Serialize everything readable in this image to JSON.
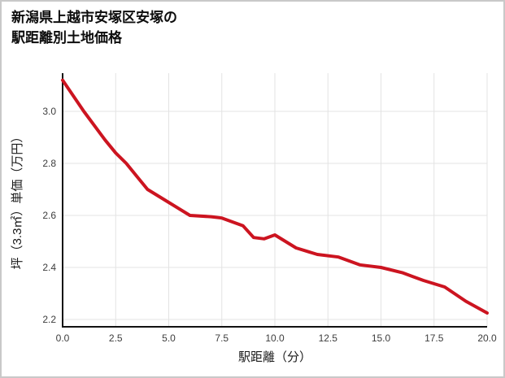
{
  "title": {
    "lines": [
      "新潟県上越市安塚区安塚の",
      "駅距離別土地価格"
    ]
  },
  "chart_data": {
    "type": "line",
    "title": "新潟県上越市安塚区安塚の駅距離別土地価格",
    "xlabel": "駅距離（分）",
    "ylabel": "坪（3.3㎡）単価（万円）",
    "x": [
      0,
      1,
      2,
      2.5,
      3,
      3.5,
      4,
      5,
      6,
      7,
      7.5,
      8,
      8.5,
      9,
      9.5,
      10,
      11,
      12,
      13,
      14,
      15,
      16,
      17,
      18,
      19,
      20
    ],
    "y": [
      3.12,
      3.0,
      2.89,
      2.84,
      2.8,
      2.75,
      2.7,
      2.65,
      2.6,
      2.595,
      2.59,
      2.575,
      2.56,
      2.515,
      2.51,
      2.525,
      2.475,
      2.45,
      2.44,
      2.41,
      2.4,
      2.38,
      2.35,
      2.325,
      2.27,
      2.225
    ],
    "xlim": [
      0,
      20
    ],
    "ylim": [
      2.172,
      3.147
    ],
    "xticks": [
      0,
      2.5,
      5,
      7.5,
      10,
      12.5,
      15,
      17.5,
      20
    ],
    "xtick_labels": [
      "0.0",
      "2.5",
      "5.0",
      "7.5",
      "10.0",
      "12.5",
      "15.0",
      "17.5",
      "20.0"
    ],
    "yticks": [
      2.2,
      2.4,
      2.6,
      2.8,
      3.0
    ],
    "ytick_labels": [
      "2.2",
      "2.4",
      "2.6",
      "2.8",
      "3.0"
    ],
    "grid": true,
    "legend": false,
    "colors": {
      "line": "#cc1420",
      "grid": "#e3e3e3",
      "axis": "#111111",
      "tick_text": "#3d3d3d",
      "label_text": "#1a1a1a",
      "frame_border": "#c9c9c9"
    }
  }
}
